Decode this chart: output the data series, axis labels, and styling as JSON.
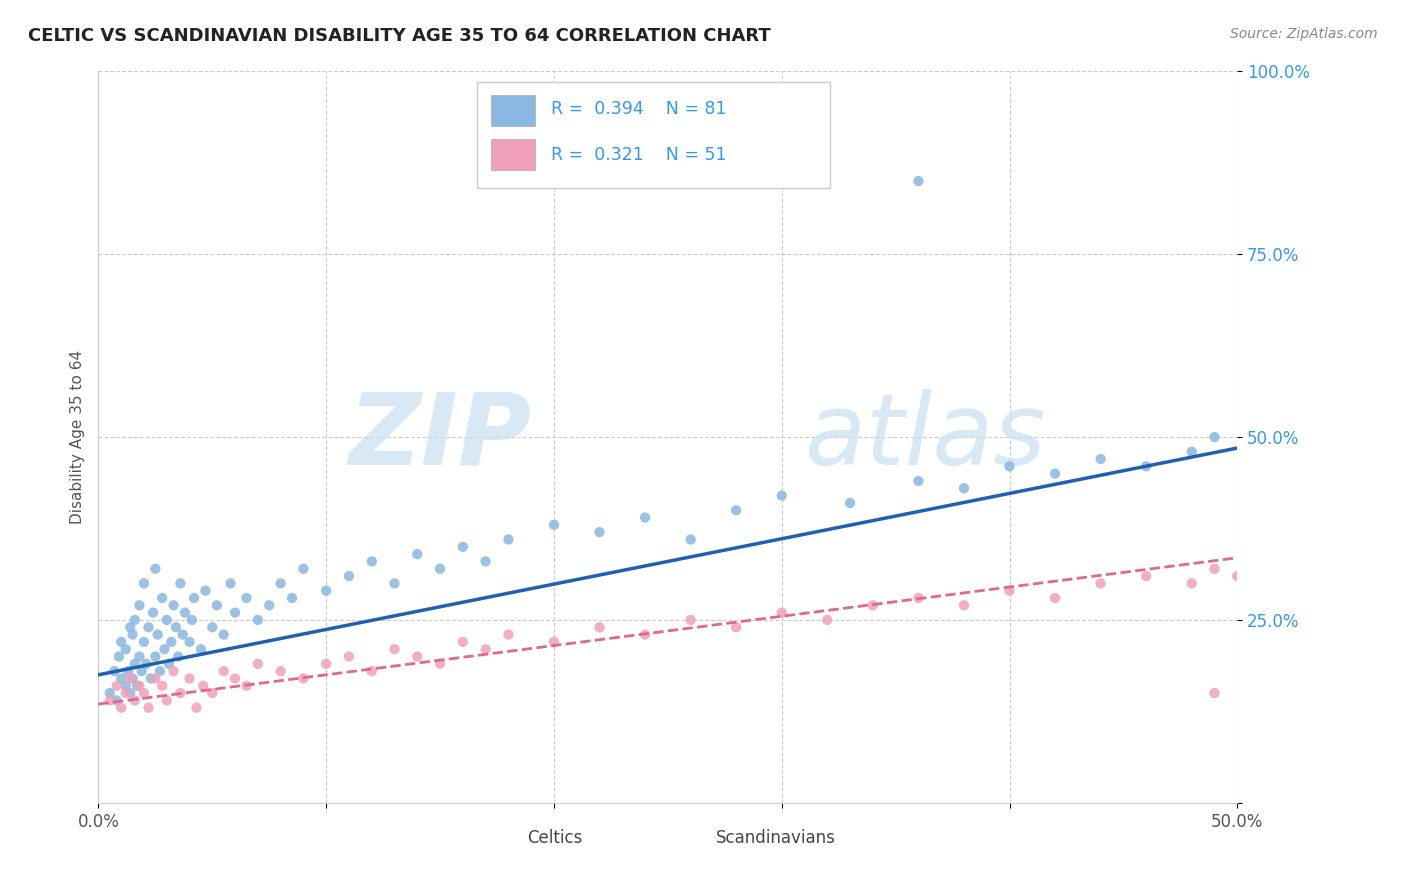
{
  "title": "CELTIC VS SCANDINAVIAN DISABILITY AGE 35 TO 64 CORRELATION CHART",
  "source": "Source: ZipAtlas.com",
  "ylabel": "Disability Age 35 to 64",
  "xlim": [
    0.0,
    0.5
  ],
  "ylim": [
    0.0,
    1.0
  ],
  "xtick_vals": [
    0.0,
    0.1,
    0.2,
    0.3,
    0.4,
    0.5
  ],
  "ytick_vals": [
    0.0,
    0.25,
    0.5,
    0.75,
    1.0
  ],
  "xticklabels": [
    "0.0%",
    "",
    "",
    "",
    "",
    "50.0%"
  ],
  "yticklabels": [
    "",
    "25.0%",
    "50.0%",
    "75.0%",
    "100.0%"
  ],
  "celtic_color": "#8ab8e0",
  "scandinavian_color": "#f0a0b8",
  "celtic_line_color": "#2060b0",
  "scandinavian_line_color": "#e06888",
  "celtics_label": "Celtics",
  "scandinavians_label": "Scandinavians",
  "watermark_color": "#c8dff0",
  "legend_R1": "R = 0.394",
  "legend_N1": "N = 81",
  "legend_R2": "R = 0.321",
  "legend_N2": "N = 51",
  "celtic_x": [
    0.005,
    0.007,
    0.008,
    0.009,
    0.01,
    0.01,
    0.012,
    0.012,
    0.013,
    0.014,
    0.014,
    0.015,
    0.015,
    0.016,
    0.016,
    0.017,
    0.018,
    0.018,
    0.019,
    0.02,
    0.02,
    0.021,
    0.022,
    0.023,
    0.024,
    0.025,
    0.025,
    0.026,
    0.027,
    0.028,
    0.029,
    0.03,
    0.031,
    0.032,
    0.033,
    0.034,
    0.035,
    0.036,
    0.037,
    0.038,
    0.04,
    0.041,
    0.042,
    0.045,
    0.047,
    0.05,
    0.052,
    0.055,
    0.058,
    0.06,
    0.065,
    0.07,
    0.075,
    0.08,
    0.085,
    0.09,
    0.1,
    0.11,
    0.12,
    0.13,
    0.14,
    0.15,
    0.16,
    0.17,
    0.18,
    0.2,
    0.22,
    0.24,
    0.26,
    0.28,
    0.3,
    0.33,
    0.36,
    0.36,
    0.38,
    0.4,
    0.42,
    0.44,
    0.46,
    0.48,
    0.49
  ],
  "celtic_y": [
    0.15,
    0.18,
    0.14,
    0.2,
    0.17,
    0.22,
    0.16,
    0.21,
    0.18,
    0.15,
    0.24,
    0.17,
    0.23,
    0.19,
    0.25,
    0.16,
    0.2,
    0.27,
    0.18,
    0.22,
    0.3,
    0.19,
    0.24,
    0.17,
    0.26,
    0.2,
    0.32,
    0.23,
    0.18,
    0.28,
    0.21,
    0.25,
    0.19,
    0.22,
    0.27,
    0.24,
    0.2,
    0.3,
    0.23,
    0.26,
    0.22,
    0.25,
    0.28,
    0.21,
    0.29,
    0.24,
    0.27,
    0.23,
    0.3,
    0.26,
    0.28,
    0.25,
    0.27,
    0.3,
    0.28,
    0.32,
    0.29,
    0.31,
    0.33,
    0.3,
    0.34,
    0.32,
    0.35,
    0.33,
    0.36,
    0.38,
    0.37,
    0.39,
    0.36,
    0.4,
    0.42,
    0.41,
    0.85,
    0.44,
    0.43,
    0.46,
    0.45,
    0.47,
    0.46,
    0.48,
    0.5
  ],
  "scand_x": [
    0.005,
    0.008,
    0.01,
    0.012,
    0.014,
    0.016,
    0.018,
    0.02,
    0.022,
    0.025,
    0.028,
    0.03,
    0.033,
    0.036,
    0.04,
    0.043,
    0.046,
    0.05,
    0.055,
    0.06,
    0.065,
    0.07,
    0.08,
    0.09,
    0.1,
    0.11,
    0.12,
    0.13,
    0.14,
    0.15,
    0.16,
    0.17,
    0.18,
    0.2,
    0.22,
    0.24,
    0.26,
    0.28,
    0.3,
    0.32,
    0.34,
    0.36,
    0.38,
    0.4,
    0.42,
    0.44,
    0.46,
    0.48,
    0.49,
    0.49,
    0.5
  ],
  "scand_y": [
    0.14,
    0.16,
    0.13,
    0.15,
    0.17,
    0.14,
    0.16,
    0.15,
    0.13,
    0.17,
    0.16,
    0.14,
    0.18,
    0.15,
    0.17,
    0.13,
    0.16,
    0.15,
    0.18,
    0.17,
    0.16,
    0.19,
    0.18,
    0.17,
    0.19,
    0.2,
    0.18,
    0.21,
    0.2,
    0.19,
    0.22,
    0.21,
    0.23,
    0.22,
    0.24,
    0.23,
    0.25,
    0.24,
    0.26,
    0.25,
    0.27,
    0.28,
    0.27,
    0.29,
    0.28,
    0.3,
    0.31,
    0.3,
    0.32,
    0.15,
    0.31
  ]
}
